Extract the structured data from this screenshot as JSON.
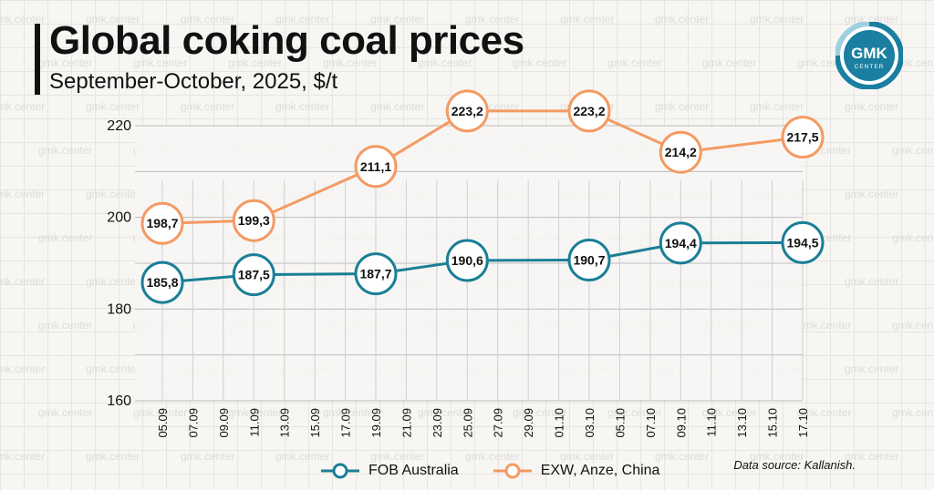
{
  "header": {
    "title": "Global coking coal prices",
    "subtitle": "September-October, 2025, $/t"
  },
  "logo": {
    "line1": "GMK",
    "line2": "CENTER",
    "color": "#1a7fa0"
  },
  "watermark": "gmk.center",
  "source": "Data source: Kallanish.",
  "chart_data": {
    "type": "line",
    "title": "Global coking coal prices",
    "subtitle": "September-October, 2025, $/t",
    "xlabel": "",
    "ylabel": "",
    "ylim": [
      160,
      220
    ],
    "yticks": [
      160,
      180,
      200,
      220
    ],
    "categories": [
      "05.09",
      "07.09",
      "09.09",
      "11.09",
      "13.09",
      "15.09",
      "17.09",
      "19.09",
      "21.09",
      "23.09",
      "25.09",
      "27.09",
      "29.09",
      "01.10",
      "03.10",
      "05.10",
      "07.10",
      "09.10",
      "11.10",
      "13.10",
      "15.10",
      "17.10"
    ],
    "grid": true,
    "legend_position": "bottom",
    "series": [
      {
        "name": "FOB Australia",
        "color": "#1a7f96",
        "points": [
          {
            "x": "05.09",
            "y": 185.8,
            "label": "185,8"
          },
          {
            "x": "11.09",
            "y": 187.5,
            "label": "187,5"
          },
          {
            "x": "19.09",
            "y": 187.7,
            "label": "187,7"
          },
          {
            "x": "25.09",
            "y": 190.6,
            "label": "190,6"
          },
          {
            "x": "03.10",
            "y": 190.7,
            "label": "190,7"
          },
          {
            "x": "09.10",
            "y": 194.4,
            "label": "194,4"
          },
          {
            "x": "17.10",
            "y": 194.5,
            "label": "194,5"
          }
        ]
      },
      {
        "name": "EXW, Anze, China",
        "color": "#f49a63",
        "points": [
          {
            "x": "05.09",
            "y": 198.7,
            "label": "198,7"
          },
          {
            "x": "11.09",
            "y": 199.3,
            "label": "199,3"
          },
          {
            "x": "19.09",
            "y": 211.1,
            "label": "211,1"
          },
          {
            "x": "25.09",
            "y": 223.2,
            "label": "223,2"
          },
          {
            "x": "03.10",
            "y": 223.2,
            "label": "223,2"
          },
          {
            "x": "09.10",
            "y": 214.2,
            "label": "214,2"
          },
          {
            "x": "17.10",
            "y": 217.5,
            "label": "217,5"
          }
        ]
      }
    ]
  }
}
